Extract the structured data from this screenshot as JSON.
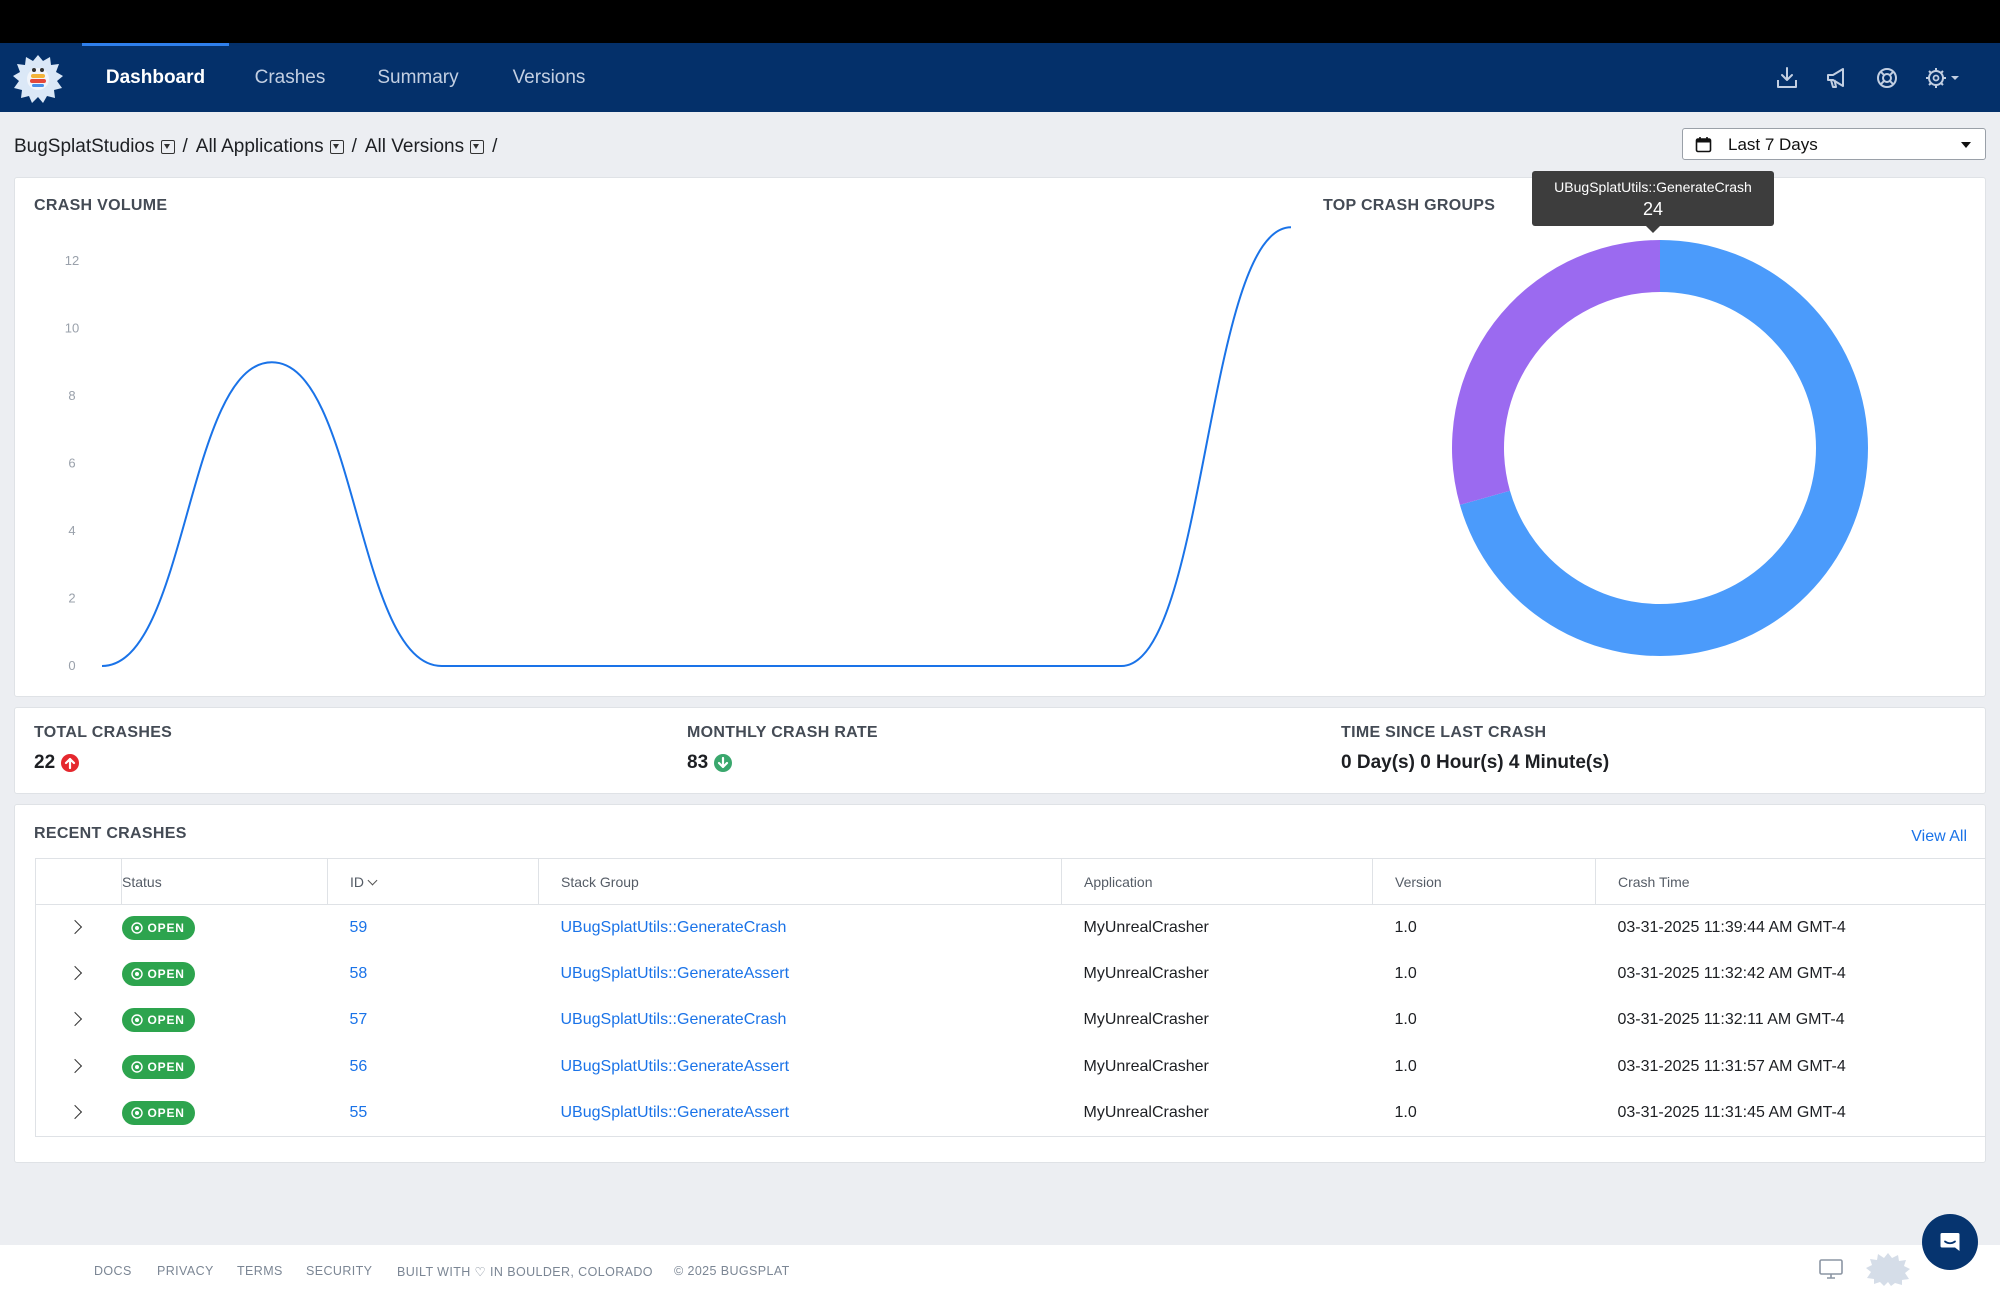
{
  "nav": {
    "tabs": [
      {
        "label": "Dashboard",
        "active": true
      },
      {
        "label": "Crashes",
        "active": false
      },
      {
        "label": "Summary",
        "active": false
      },
      {
        "label": "Versions",
        "active": false
      }
    ],
    "icons": [
      "download-icon",
      "megaphone-icon",
      "lifebuoy-icon",
      "gear-icon",
      "caret-down-icon"
    ]
  },
  "breadcrumb": {
    "database": "BugSplatStudios",
    "application": "All Applications",
    "version": "All Versions",
    "separator": "/"
  },
  "date_range": {
    "selected": "Last 7 Days"
  },
  "crash_volume": {
    "title": "CRASH VOLUME",
    "chart_data": {
      "type": "line",
      "title": "",
      "xlabel": "",
      "ylabel": "",
      "ylim": [
        0,
        12
      ],
      "yticks": [
        "0",
        "2",
        "4",
        "6",
        "8",
        "10",
        "12"
      ],
      "series": [
        {
          "values": [
            0,
            9,
            0,
            0,
            0,
            0,
            0,
            13
          ]
        }
      ],
      "grid": false,
      "color": "#1a73e8"
    }
  },
  "top_crash_groups": {
    "title": "TOP CRASH GROUPS",
    "tooltip": {
      "label": "UBugSplatUtils::GenerateCrash",
      "value": "24"
    },
    "chart_data": {
      "type": "pie",
      "donut": true,
      "slices": [
        {
          "value": 24,
          "color": "#4b9bfb"
        },
        {
          "value": 10,
          "color": "#9b6af0"
        }
      ]
    }
  },
  "stats": {
    "total_crashes": {
      "label": "TOTAL CRASHES",
      "value": "22",
      "trend": "up",
      "color": "#e5282e"
    },
    "monthly_crash_rate": {
      "label": "MONTHLY CRASH RATE",
      "value": "83",
      "trend": "down",
      "color": "#3aa76d"
    },
    "time_since_last": {
      "label": "TIME SINCE LAST CRASH",
      "value": "0 Day(s) 0 Hour(s) 4 Minute(s)"
    }
  },
  "recent_crashes": {
    "title": "RECENT CRASHES",
    "view_all": "View All",
    "columns": [
      "Status",
      "ID",
      "Stack Group",
      "Application",
      "Version",
      "Crash Time"
    ],
    "rows": [
      {
        "status": "OPEN",
        "id": "59",
        "stack_group": "UBugSplatUtils::GenerateCrash",
        "application": "MyUnrealCrasher",
        "version": "1.0",
        "crash_time": "03-31-2025 11:39:44 AM GMT-4"
      },
      {
        "status": "OPEN",
        "id": "58",
        "stack_group": "UBugSplatUtils::GenerateAssert",
        "application": "MyUnrealCrasher",
        "version": "1.0",
        "crash_time": "03-31-2025 11:32:42 AM GMT-4"
      },
      {
        "status": "OPEN",
        "id": "57",
        "stack_group": "UBugSplatUtils::GenerateCrash",
        "application": "MyUnrealCrasher",
        "version": "1.0",
        "crash_time": "03-31-2025 11:32:11 AM GMT-4"
      },
      {
        "status": "OPEN",
        "id": "56",
        "stack_group": "UBugSplatUtils::GenerateAssert",
        "application": "MyUnrealCrasher",
        "version": "1.0",
        "crash_time": "03-31-2025 11:31:57 AM GMT-4"
      },
      {
        "status": "OPEN",
        "id": "55",
        "stack_group": "UBugSplatUtils::GenerateAssert",
        "application": "MyUnrealCrasher",
        "version": "1.0",
        "crash_time": "03-31-2025 11:31:45 AM GMT-4"
      }
    ]
  },
  "footer": {
    "links": [
      "DOCS",
      "PRIVACY",
      "TERMS",
      "SECURITY"
    ],
    "built_with": "BUILT WITH ♡ IN BOULDER, COLORADO",
    "copyright": "© 2025 BUGSPLAT"
  }
}
